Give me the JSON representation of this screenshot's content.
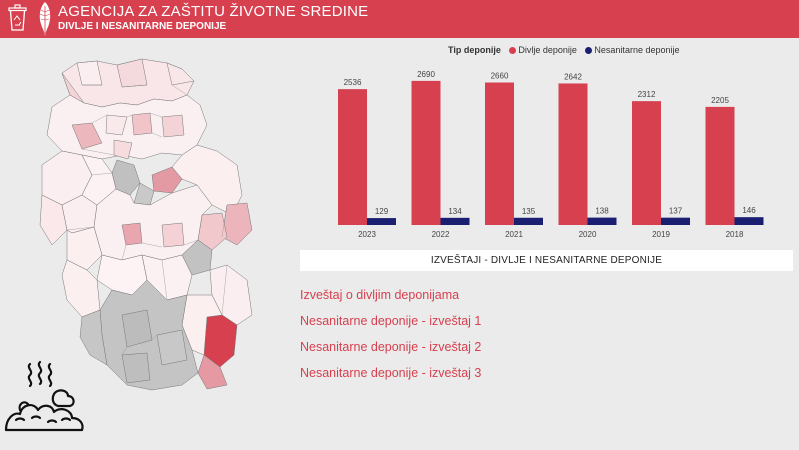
{
  "header": {
    "title": "AGENCIJA ZA ZAŠTITU ŽIVOTNE SREDINE",
    "subtitle": "DIVLJE I NESANITARNE DEPONIJE",
    "accent": "#d6404f"
  },
  "legend": {
    "title": "Tip deponije",
    "items": [
      {
        "label": "Divlje deponije",
        "color": "#d6404f"
      },
      {
        "label": "Nesanitarne deponije",
        "color": "#1a1f71"
      }
    ]
  },
  "chart_data": {
    "type": "bar",
    "categories": [
      "2023",
      "2022",
      "2021",
      "2020",
      "2019",
      "2018"
    ],
    "series": [
      {
        "name": "Divlje deponije",
        "values": [
          2536,
          2690,
          2660,
          2642,
          2312,
          2205
        ],
        "color": "#d6404f"
      },
      {
        "name": "Nesanitarne deponije",
        "values": [
          129,
          134,
          135,
          138,
          137,
          146
        ],
        "color": "#1a1f71"
      }
    ],
    "ylim": [
      0,
      2800
    ],
    "grid": false,
    "legend_position": "top-center"
  },
  "reports": {
    "header": "IZVEŠTAJI - DIVLJE I NESANITARNE DEPONIJE",
    "links": [
      "Izveštaj o divljim deponijama",
      "Nesanitarne deponije - izveštaj 1",
      "Nesanitarne deponije - izveštaj 2",
      "Nesanitarne deponije - izveštaj 3"
    ]
  },
  "icons": {
    "logo": "recycle-bin-icon",
    "leaf": "feather-leaf-icon",
    "illustration": "waste-pile-icon",
    "map": "serbia-municipalities-map"
  }
}
